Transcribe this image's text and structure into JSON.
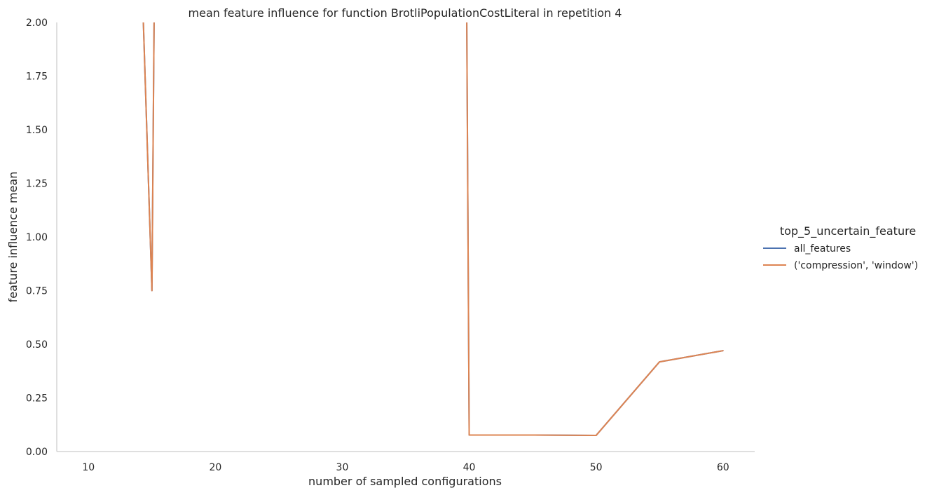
{
  "chart_data": {
    "type": "line",
    "title": "mean feature influence for function BrotliPopulationCostLiteral in repetition 4",
    "xlabel": "number of sampled configurations",
    "ylabel": "feature influence mean",
    "xlim": [
      7.5,
      62.5
    ],
    "ylim": [
      0,
      2
    ],
    "xticks": [
      "10",
      "20",
      "30",
      "40",
      "50",
      "60"
    ],
    "yticks": [
      "0.00",
      "0.25",
      "0.50",
      "0.75",
      "1.00",
      "1.25",
      "1.50",
      "1.75",
      "2.00"
    ],
    "grid": false,
    "legend": {
      "title": "top_5_uncertain_feature",
      "placement": "right"
    },
    "series": [
      {
        "name": "all_features",
        "color": "#4c72b0",
        "x": [
          14,
          15,
          15.25,
          39.75,
          40,
          45,
          50,
          55,
          60
        ],
        "y": [
          2.6,
          0.75,
          2.6,
          2.6,
          0.077,
          0.077,
          0.075,
          0.418,
          0.47
        ]
      },
      {
        "name": "('compression', 'window')",
        "color": "#dd8452",
        "x": [
          14,
          15,
          15.25,
          39.75,
          40,
          45,
          50,
          55,
          60
        ],
        "y": [
          2.6,
          0.75,
          2.6,
          2.6,
          0.077,
          0.077,
          0.075,
          0.418,
          0.47
        ]
      }
    ]
  }
}
